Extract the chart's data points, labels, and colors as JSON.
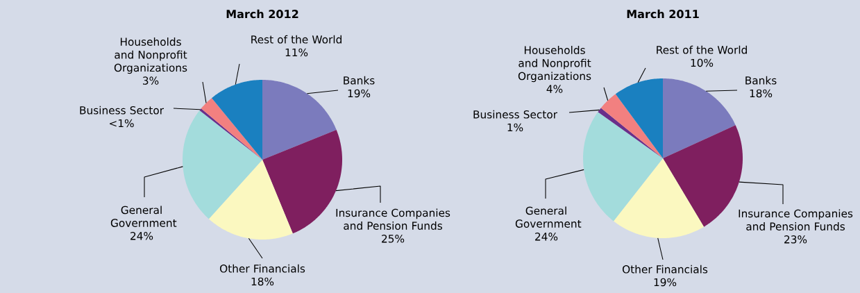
{
  "chart_data": [
    {
      "type": "pie",
      "title": "March 2012",
      "categories": [
        "Banks",
        "Insurance Companies and Pension Funds",
        "Other Financials",
        "General Government",
        "Business Sector",
        "Households and Nonprofit Organizations",
        "Rest of the World"
      ],
      "values": [
        19,
        25,
        18,
        24,
        0.5,
        3,
        11
      ],
      "value_labels": [
        "19%",
        "25%",
        "18%",
        "24%",
        "<1%",
        "3%",
        "11%"
      ],
      "colors": [
        "#7b7bbd",
        "#7f1f5f",
        "#fbf8c0",
        "#a3dcdc",
        "#6a2f8a",
        "#f28080",
        "#1a80c0"
      ]
    },
    {
      "type": "pie",
      "title": "March 2011",
      "categories": [
        "Banks",
        "Insurance Companies and Pension Funds",
        "Other Financials",
        "General Government",
        "Business Sector",
        "Households and Nonprofit Organizations",
        "Rest of the World"
      ],
      "values": [
        18,
        23,
        19,
        24,
        1,
        4,
        10
      ],
      "value_labels": [
        "18%",
        "23%",
        "19%",
        "24%",
        "1%",
        "4%",
        "10%"
      ],
      "colors": [
        "#7b7bbd",
        "#7f1f5f",
        "#fbf8c0",
        "#a3dcdc",
        "#6a2f8a",
        "#f28080",
        "#1a80c0"
      ]
    }
  ]
}
